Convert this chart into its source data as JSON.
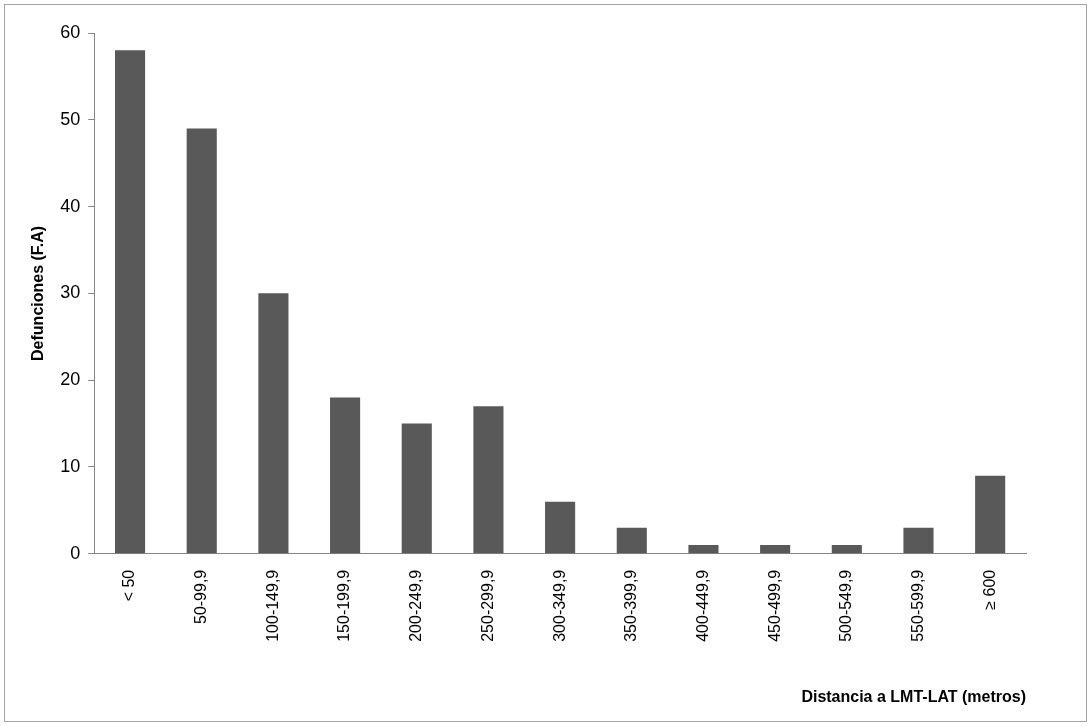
{
  "chart_data": {
    "type": "bar",
    "xlabel": "Distancia a LMT-LAT (metros)",
    "ylabel": "Defunciones (F.A)",
    "categories": [
      "< 50",
      "50-99,9",
      "100-149,9",
      "150-199,9",
      "200-249,9",
      "250-299,9",
      "300-349,9",
      "350-399,9",
      "400-449,9",
      "450-499,9",
      "500-549,9",
      "550-599,9",
      "≥ 600"
    ],
    "values": [
      58,
      49,
      30,
      18,
      15,
      17,
      6,
      3,
      1,
      1,
      1,
      3,
      9
    ],
    "color": "#595959",
    "ylim": [
      0,
      60
    ],
    "yticks": [
      0,
      10,
      20,
      30,
      40,
      50,
      60
    ]
  }
}
